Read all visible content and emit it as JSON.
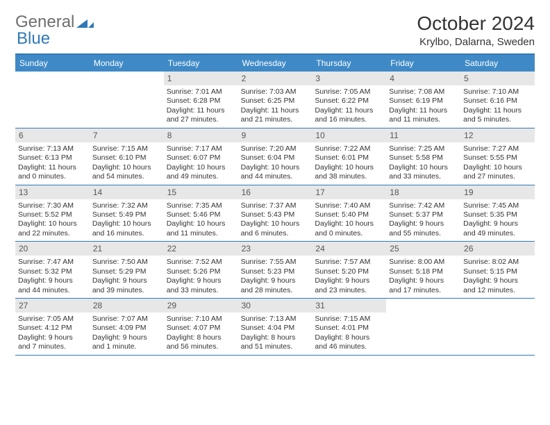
{
  "logo": {
    "word1": "General",
    "word2": "Blue"
  },
  "title": "October 2024",
  "location": "Krylbo, Dalarna, Sweden",
  "colors": {
    "header_bg": "#3f8ac6",
    "header_text": "#ffffff",
    "border": "#2f78b7",
    "date_bg": "#e7e7e7",
    "text": "#333333"
  },
  "day_names": [
    "Sunday",
    "Monday",
    "Tuesday",
    "Wednesday",
    "Thursday",
    "Friday",
    "Saturday"
  ],
  "weeks": [
    [
      {
        "blank": true
      },
      {
        "blank": true
      },
      {
        "date": "1",
        "sunrise": "Sunrise: 7:01 AM",
        "sunset": "Sunset: 6:28 PM",
        "day1": "Daylight: 11 hours",
        "day2": "and 27 minutes."
      },
      {
        "date": "2",
        "sunrise": "Sunrise: 7:03 AM",
        "sunset": "Sunset: 6:25 PM",
        "day1": "Daylight: 11 hours",
        "day2": "and 21 minutes."
      },
      {
        "date": "3",
        "sunrise": "Sunrise: 7:05 AM",
        "sunset": "Sunset: 6:22 PM",
        "day1": "Daylight: 11 hours",
        "day2": "and 16 minutes."
      },
      {
        "date": "4",
        "sunrise": "Sunrise: 7:08 AM",
        "sunset": "Sunset: 6:19 PM",
        "day1": "Daylight: 11 hours",
        "day2": "and 11 minutes."
      },
      {
        "date": "5",
        "sunrise": "Sunrise: 7:10 AM",
        "sunset": "Sunset: 6:16 PM",
        "day1": "Daylight: 11 hours",
        "day2": "and 5 minutes."
      }
    ],
    [
      {
        "date": "6",
        "sunrise": "Sunrise: 7:13 AM",
        "sunset": "Sunset: 6:13 PM",
        "day1": "Daylight: 11 hours",
        "day2": "and 0 minutes."
      },
      {
        "date": "7",
        "sunrise": "Sunrise: 7:15 AM",
        "sunset": "Sunset: 6:10 PM",
        "day1": "Daylight: 10 hours",
        "day2": "and 54 minutes."
      },
      {
        "date": "8",
        "sunrise": "Sunrise: 7:17 AM",
        "sunset": "Sunset: 6:07 PM",
        "day1": "Daylight: 10 hours",
        "day2": "and 49 minutes."
      },
      {
        "date": "9",
        "sunrise": "Sunrise: 7:20 AM",
        "sunset": "Sunset: 6:04 PM",
        "day1": "Daylight: 10 hours",
        "day2": "and 44 minutes."
      },
      {
        "date": "10",
        "sunrise": "Sunrise: 7:22 AM",
        "sunset": "Sunset: 6:01 PM",
        "day1": "Daylight: 10 hours",
        "day2": "and 38 minutes."
      },
      {
        "date": "11",
        "sunrise": "Sunrise: 7:25 AM",
        "sunset": "Sunset: 5:58 PM",
        "day1": "Daylight: 10 hours",
        "day2": "and 33 minutes."
      },
      {
        "date": "12",
        "sunrise": "Sunrise: 7:27 AM",
        "sunset": "Sunset: 5:55 PM",
        "day1": "Daylight: 10 hours",
        "day2": "and 27 minutes."
      }
    ],
    [
      {
        "date": "13",
        "sunrise": "Sunrise: 7:30 AM",
        "sunset": "Sunset: 5:52 PM",
        "day1": "Daylight: 10 hours",
        "day2": "and 22 minutes."
      },
      {
        "date": "14",
        "sunrise": "Sunrise: 7:32 AM",
        "sunset": "Sunset: 5:49 PM",
        "day1": "Daylight: 10 hours",
        "day2": "and 16 minutes."
      },
      {
        "date": "15",
        "sunrise": "Sunrise: 7:35 AM",
        "sunset": "Sunset: 5:46 PM",
        "day1": "Daylight: 10 hours",
        "day2": "and 11 minutes."
      },
      {
        "date": "16",
        "sunrise": "Sunrise: 7:37 AM",
        "sunset": "Sunset: 5:43 PM",
        "day1": "Daylight: 10 hours",
        "day2": "and 6 minutes."
      },
      {
        "date": "17",
        "sunrise": "Sunrise: 7:40 AM",
        "sunset": "Sunset: 5:40 PM",
        "day1": "Daylight: 10 hours",
        "day2": "and 0 minutes."
      },
      {
        "date": "18",
        "sunrise": "Sunrise: 7:42 AM",
        "sunset": "Sunset: 5:37 PM",
        "day1": "Daylight: 9 hours",
        "day2": "and 55 minutes."
      },
      {
        "date": "19",
        "sunrise": "Sunrise: 7:45 AM",
        "sunset": "Sunset: 5:35 PM",
        "day1": "Daylight: 9 hours",
        "day2": "and 49 minutes."
      }
    ],
    [
      {
        "date": "20",
        "sunrise": "Sunrise: 7:47 AM",
        "sunset": "Sunset: 5:32 PM",
        "day1": "Daylight: 9 hours",
        "day2": "and 44 minutes."
      },
      {
        "date": "21",
        "sunrise": "Sunrise: 7:50 AM",
        "sunset": "Sunset: 5:29 PM",
        "day1": "Daylight: 9 hours",
        "day2": "and 39 minutes."
      },
      {
        "date": "22",
        "sunrise": "Sunrise: 7:52 AM",
        "sunset": "Sunset: 5:26 PM",
        "day1": "Daylight: 9 hours",
        "day2": "and 33 minutes."
      },
      {
        "date": "23",
        "sunrise": "Sunrise: 7:55 AM",
        "sunset": "Sunset: 5:23 PM",
        "day1": "Daylight: 9 hours",
        "day2": "and 28 minutes."
      },
      {
        "date": "24",
        "sunrise": "Sunrise: 7:57 AM",
        "sunset": "Sunset: 5:20 PM",
        "day1": "Daylight: 9 hours",
        "day2": "and 23 minutes."
      },
      {
        "date": "25",
        "sunrise": "Sunrise: 8:00 AM",
        "sunset": "Sunset: 5:18 PM",
        "day1": "Daylight: 9 hours",
        "day2": "and 17 minutes."
      },
      {
        "date": "26",
        "sunrise": "Sunrise: 8:02 AM",
        "sunset": "Sunset: 5:15 PM",
        "day1": "Daylight: 9 hours",
        "day2": "and 12 minutes."
      }
    ],
    [
      {
        "date": "27",
        "sunrise": "Sunrise: 7:05 AM",
        "sunset": "Sunset: 4:12 PM",
        "day1": "Daylight: 9 hours",
        "day2": "and 7 minutes."
      },
      {
        "date": "28",
        "sunrise": "Sunrise: 7:07 AM",
        "sunset": "Sunset: 4:09 PM",
        "day1": "Daylight: 9 hours",
        "day2": "and 1 minute."
      },
      {
        "date": "29",
        "sunrise": "Sunrise: 7:10 AM",
        "sunset": "Sunset: 4:07 PM",
        "day1": "Daylight: 8 hours",
        "day2": "and 56 minutes."
      },
      {
        "date": "30",
        "sunrise": "Sunrise: 7:13 AM",
        "sunset": "Sunset: 4:04 PM",
        "day1": "Daylight: 8 hours",
        "day2": "and 51 minutes."
      },
      {
        "date": "31",
        "sunrise": "Sunrise: 7:15 AM",
        "sunset": "Sunset: 4:01 PM",
        "day1": "Daylight: 8 hours",
        "day2": "and 46 minutes."
      },
      {
        "blank": true
      },
      {
        "blank": true
      }
    ]
  ]
}
